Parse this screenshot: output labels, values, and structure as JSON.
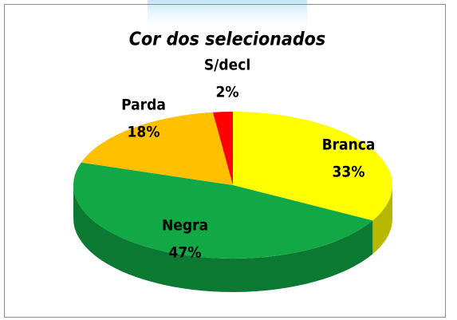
{
  "chart_data": {
    "type": "pie3d",
    "title": "Cor dos selecionados",
    "categories": [
      "Branca",
      "Negra",
      "Parda",
      "S/decl"
    ],
    "values": [
      33,
      47,
      18,
      2
    ],
    "value_labels": [
      "33%",
      "47%",
      "18%",
      "2%"
    ],
    "colors": [
      "#ffff00",
      "#11a845",
      "#ffc000",
      "#ff0000"
    ]
  }
}
